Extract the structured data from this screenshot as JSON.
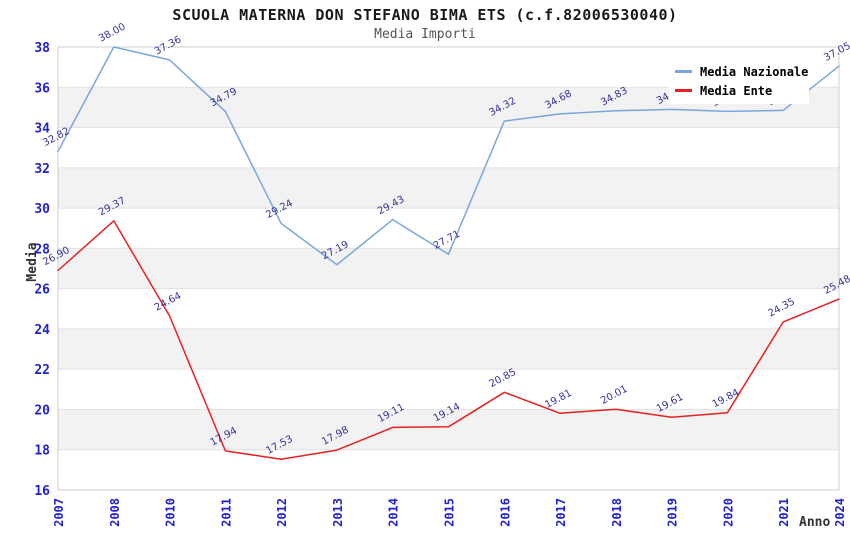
{
  "chart_data": {
    "type": "line",
    "title": "SCUOLA MATERNA DON STEFANO BIMA ETS (c.f.82006530040)",
    "subtitle": "Media Importi",
    "xlabel": "Anno",
    "ylabel": "Media",
    "ylim": [
      16,
      38
    ],
    "ytick_step": 2,
    "grid": "horizontal-bands",
    "legend_position": "top-right",
    "point_label_decimals": 2,
    "categories": [
      "2007",
      "2008",
      "2010",
      "2011",
      "2012",
      "2013",
      "2014",
      "2015",
      "2016",
      "2017",
      "2018",
      "2019",
      "2020",
      "2021",
      "2024"
    ],
    "series": [
      {
        "name": "Media Nazionale",
        "color": "#79a7dd",
        "values": [
          32.82,
          38.0,
          37.36,
          34.79,
          29.24,
          27.19,
          29.43,
          27.71,
          34.32,
          34.68,
          34.83,
          34.9,
          34.8,
          34.85,
          37.05
        ]
      },
      {
        "name": "Media Ente",
        "color": "#e62222",
        "values": [
          26.9,
          29.37,
          24.64,
          17.94,
          17.53,
          17.98,
          19.11,
          19.14,
          20.85,
          19.81,
          20.01,
          19.61,
          19.84,
          24.35,
          25.48
        ]
      }
    ],
    "colors": {
      "tick_label": "#2222cc",
      "data_label": "#333399",
      "band_gray": "#f2f2f2",
      "band_white": "#ffffff",
      "gridline": "#e2e2e2",
      "plot_border": "#cfcfcf",
      "axis_title": "#333333",
      "title": "#1a1a1a",
      "subtitle": "#555555",
      "legend_bg": "#ffffff"
    }
  }
}
